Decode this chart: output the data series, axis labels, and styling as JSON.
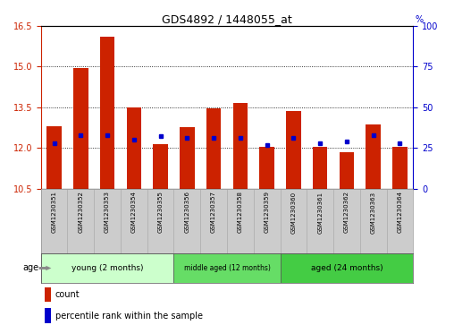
{
  "title": "GDS4892 / 1448055_at",
  "samples": [
    "GSM1230351",
    "GSM1230352",
    "GSM1230353",
    "GSM1230354",
    "GSM1230355",
    "GSM1230356",
    "GSM1230357",
    "GSM1230358",
    "GSM1230359",
    "GSM1230360",
    "GSM1230361",
    "GSM1230362",
    "GSM1230363",
    "GSM1230364"
  ],
  "count_values": [
    12.8,
    14.95,
    16.1,
    13.5,
    12.15,
    12.75,
    13.45,
    13.65,
    12.05,
    13.35,
    12.05,
    11.85,
    12.85,
    12.05
  ],
  "percentile_values": [
    28,
    33,
    33,
    30,
    32,
    31,
    31,
    31,
    27,
    31,
    28,
    29,
    33,
    28
  ],
  "ymin": 10.5,
  "ymax": 16.5,
  "yticks_left": [
    10.5,
    12.0,
    13.5,
    15.0,
    16.5
  ],
  "yticks_right": [
    0,
    25,
    50,
    75,
    100
  ],
  "bar_color": "#cc2200",
  "dot_color": "#0000cc",
  "bar_width": 0.55,
  "group_young_color": "#ccffcc",
  "group_middle_color": "#66dd66",
  "group_aged_color": "#44cc44",
  "age_label": "age",
  "legend_count_label": "count",
  "legend_pct_label": "percentile rank within the sample",
  "bg_color": "#ffffff",
  "tick_bg_color": "#cccccc",
  "groups": [
    {
      "label": "young (2 months)",
      "start": 0,
      "end": 4
    },
    {
      "label": "middle aged (12 months)",
      "start": 5,
      "end": 8
    },
    {
      "label": "aged (24 months)",
      "start": 9,
      "end": 13
    }
  ]
}
